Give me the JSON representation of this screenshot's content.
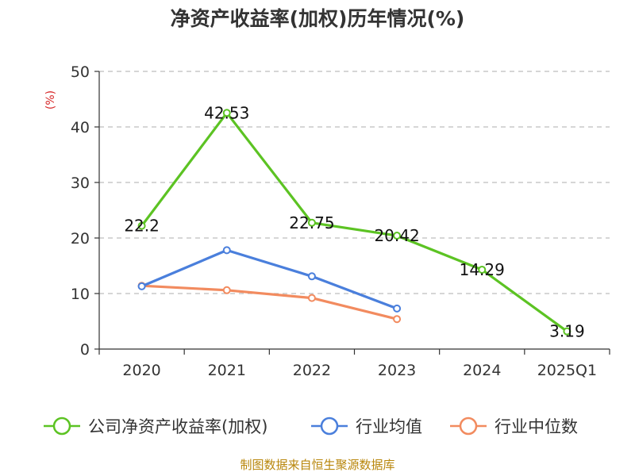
{
  "chart_data": {
    "type": "line",
    "title": "净资产收益率(加权)历年情况(%)",
    "ylabel": "(%)",
    "xlabel": "",
    "categories": [
      "2020",
      "2021",
      "2022",
      "2023",
      "2024",
      "2025Q1"
    ],
    "yticks": [
      "0",
      "10",
      "20",
      "30",
      "40",
      "50"
    ],
    "ylim": [
      0,
      50
    ],
    "grid": true,
    "legend_position": "bottom",
    "series": [
      {
        "name": "公司净资产收益率(加权)",
        "color": "#5cc323",
        "values": [
          22.2,
          42.53,
          22.75,
          20.42,
          14.29,
          3.19
        ],
        "labels": [
          "22.2",
          "42.53",
          "22.75",
          "20.42",
          "14.29",
          "3.19"
        ]
      },
      {
        "name": "行业均值",
        "color": "#4a7fdc",
        "values": [
          11.3,
          17.8,
          13.1,
          7.3,
          null,
          null
        ]
      },
      {
        "name": "行业中位数",
        "color": "#f28b5f",
        "values": [
          11.4,
          10.6,
          9.2,
          5.4,
          null,
          null
        ]
      }
    ]
  },
  "source": "制图数据来自恒生聚源数据库"
}
